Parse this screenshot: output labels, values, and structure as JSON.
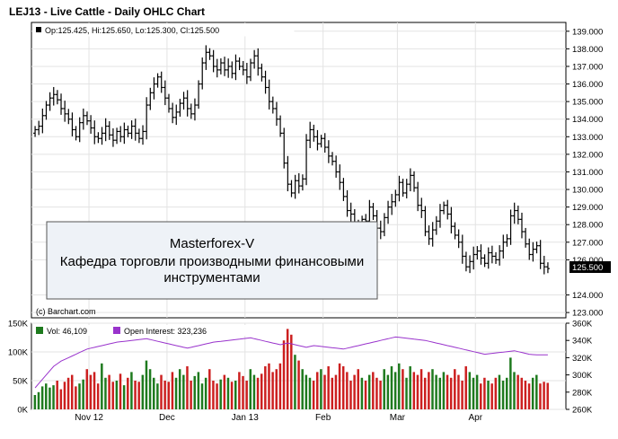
{
  "chart_data": [
    {
      "type": "ohlc",
      "title": "LEJ13 - Live Cattle - Daily OHLC Chart",
      "info": "Op:125.425, Hi:125.650, Lo:125.300, Cl:125.500",
      "last_price_label": "125.500",
      "credit": "(c) Barchart.com",
      "ylim": [
        122.7,
        139.5
      ],
      "y_ticks": [
        "139.000",
        "138.000",
        "137.000",
        "136.000",
        "135.000",
        "134.000",
        "133.000",
        "132.000",
        "131.000",
        "130.000",
        "129.000",
        "128.000",
        "127.000",
        "126.000",
        "124.000",
        "123.000"
      ],
      "x_months": [
        "Nov 12",
        "Dec",
        "Jan 13",
        "Feb",
        "Mar",
        "Apr"
      ],
      "closes": [
        133.4,
        133.6,
        134.2,
        134.8,
        135.2,
        135.4,
        135.1,
        134.6,
        134.3,
        134.0,
        133.4,
        133.0,
        133.8,
        134.2,
        133.9,
        133.5,
        133.0,
        132.9,
        133.2,
        133.6,
        133.1,
        132.8,
        133.3,
        133.0,
        133.4,
        133.2,
        133.6,
        133.2,
        132.9,
        133.3,
        134.8,
        135.5,
        136.0,
        136.4,
        135.8,
        135.2,
        134.6,
        134.1,
        134.4,
        134.9,
        135.2,
        134.6,
        134.3,
        134.8,
        136.0,
        137.2,
        137.8,
        137.6,
        137.0,
        136.8,
        137.2,
        136.8,
        137.0,
        136.6,
        137.3,
        137.0,
        136.8,
        136.4,
        137.2,
        137.6,
        136.9,
        136.4,
        135.8,
        135.0,
        134.6,
        134.0,
        133.2,
        131.5,
        130.3,
        129.8,
        130.5,
        130.2,
        130.6,
        132.8,
        133.4,
        133.0,
        132.6,
        132.9,
        132.4,
        131.9,
        131.6,
        131.0,
        130.4,
        129.6,
        128.8,
        128.6,
        127.9,
        127.3,
        128.3,
        128.2,
        129.0,
        128.5,
        127.8,
        127.6,
        128.4,
        129.0,
        129.3,
        129.7,
        130.4,
        129.8,
        130.3,
        130.8,
        130.1,
        129.1,
        128.8,
        127.6,
        127.2,
        127.7,
        128.2,
        128.8,
        129.1,
        128.6,
        127.9,
        127.4,
        127.0,
        126.2,
        125.6,
        125.9,
        126.3,
        126.5,
        126.1,
        125.8,
        126.4,
        126.2,
        126.0,
        126.5,
        127.0,
        127.2,
        128.5,
        128.8,
        128.3,
        127.6,
        126.9,
        126.3,
        126.6,
        126.8,
        125.8,
        125.6,
        125.5
      ]
    },
    {
      "type": "bar+line",
      "legend": [
        {
          "name": "Vol: 46,109",
          "color": "#1e7a1e"
        },
        {
          "name": "Open Interest: 323,236",
          "color": "#9933cc"
        }
      ],
      "left_ylim": [
        0,
        150000
      ],
      "left_ticks": [
        "150K",
        "100K",
        "50K",
        "0K"
      ],
      "right_ylim": [
        260000,
        360000
      ],
      "right_ticks": [
        "360K",
        "340K",
        "320K",
        "300K",
        "280K",
        "260K"
      ],
      "volume": [
        25000,
        30000,
        40000,
        45000,
        38000,
        42000,
        50000,
        35000,
        48000,
        55000,
        60000,
        40000,
        45000,
        52000,
        70000,
        60000,
        65000,
        45000,
        80000,
        55000,
        60000,
        48000,
        50000,
        62000,
        42000,
        55000,
        65000,
        50000,
        48000,
        60000,
        85000,
        70000,
        55000,
        45000,
        60000,
        50000,
        48000,
        65000,
        55000,
        70000,
        60000,
        75000,
        50000,
        58000,
        65000,
        45000,
        55000,
        70000,
        50000,
        45000,
        52000,
        60000,
        55000,
        48000,
        50000,
        65000,
        58000,
        50000,
        70000,
        60000,
        55000,
        62000,
        75000,
        80000,
        65000,
        70000,
        80000,
        120000,
        140000,
        130000,
        95000,
        85000,
        70000,
        60000,
        55000,
        50000,
        65000,
        70000,
        60000,
        75000,
        55000,
        60000,
        80000,
        75000,
        65000,
        50000,
        60000,
        70000,
        55000,
        50000,
        60000,
        65000,
        55000,
        50000,
        70000,
        60000,
        75000,
        65000,
        80000,
        70000,
        55000,
        75000,
        65000,
        60000,
        70000,
        55000,
        65000,
        70000,
        60000,
        55000,
        65000,
        60000,
        55000,
        70000,
        60000,
        50000,
        75000,
        65000,
        55000,
        60000,
        45000,
        55000,
        50000,
        45000,
        55000,
        60000,
        50000,
        55000,
        90000,
        65000,
        60000,
        55000,
        50000,
        45000,
        55000,
        60000,
        45000,
        48000,
        46109
      ],
      "open_interest": [
        285000,
        290000,
        295000,
        300000,
        305000,
        310000,
        313000,
        316000,
        318000,
        320000,
        322000,
        324000,
        326000,
        328000,
        330000,
        331000,
        332000,
        333000,
        334000,
        335000,
        336000,
        337000,
        338000,
        338500,
        339000,
        339500,
        340000,
        340500,
        341000,
        341500,
        342000,
        341000,
        340000,
        339000,
        338000,
        337000,
        336000,
        335000,
        334000,
        333000,
        332000,
        331000,
        332000,
        333000,
        334000,
        335000,
        336000,
        337000,
        338000,
        338500,
        339000,
        339500,
        340000,
        340500,
        341000,
        341500,
        342000,
        342500,
        343000,
        342000,
        341000,
        340000,
        339000,
        338000,
        337000,
        336000,
        335000,
        336000,
        337000,
        336000,
        335000,
        334000,
        333000,
        332000,
        333000,
        334000,
        333500,
        333000,
        332500,
        332000,
        331500,
        331000,
        330500,
        330000,
        331000,
        332000,
        333000,
        334000,
        335000,
        336000,
        337000,
        338000,
        339000,
        340000,
        341000,
        342000,
        343000,
        344000,
        343500,
        343000,
        342500,
        342000,
        341500,
        341000,
        340500,
        340000,
        339000,
        338000,
        337000,
        336000,
        335000,
        334000,
        333000,
        332000,
        331000,
        330000,
        329000,
        328000,
        327000,
        326000,
        325000,
        324000,
        324500,
        325000,
        325500,
        326000,
        326500,
        327000,
        327500,
        328000,
        327000,
        326000,
        325000,
        324000,
        323500,
        323236,
        323236,
        323236,
        323236
      ]
    }
  ],
  "watermark": {
    "line1": "Masterforex-V",
    "line2": "Кафедра торговли производными финансовыми",
    "line3": "инструментами"
  }
}
